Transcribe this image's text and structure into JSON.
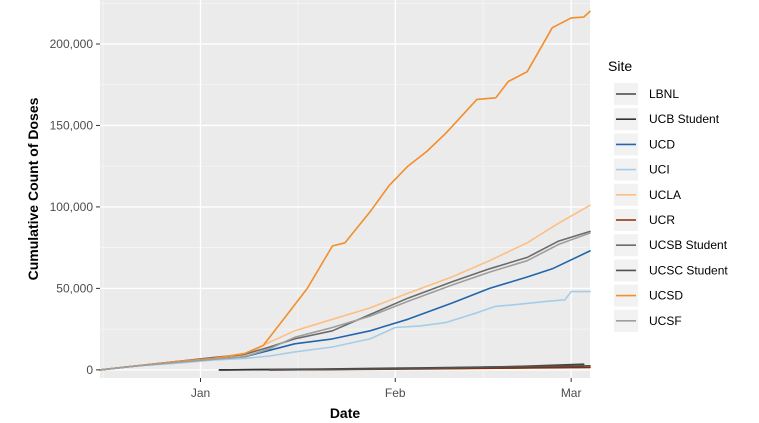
{
  "chart_data": {
    "type": "line",
    "xlabel": "Date",
    "ylabel": "Cumulative Count of Doses",
    "legend_title": "Site",
    "legend_position": "right",
    "grid": true,
    "x_range": [
      "2020-12-16",
      "2021-03-04"
    ],
    "y_range": [
      -5000,
      227000
    ],
    "x_ticks": [
      {
        "date": "2021-01-01",
        "label": "Jan"
      },
      {
        "date": "2021-02-01",
        "label": "Feb"
      },
      {
        "date": "2021-03-01",
        "label": "Mar"
      }
    ],
    "y_ticks": [
      {
        "value": 0,
        "label": "0"
      },
      {
        "value": 50000,
        "label": "50,000"
      },
      {
        "value": 100000,
        "label": "100,000"
      },
      {
        "value": 150000,
        "label": "150,000"
      },
      {
        "value": 200000,
        "label": "200,000"
      }
    ],
    "series": [
      {
        "name": "LBNL",
        "color": "#444444",
        "points": [
          [
            "2021-01-04",
            0
          ],
          [
            "2021-01-20",
            500
          ],
          [
            "2021-02-05",
            1200
          ],
          [
            "2021-02-20",
            2000
          ],
          [
            "2021-03-03",
            3500
          ]
        ]
      },
      {
        "name": "UCB Student",
        "color": "#333333",
        "points": [
          [
            "2021-01-04",
            0
          ],
          [
            "2021-01-20",
            300
          ],
          [
            "2021-02-05",
            800
          ],
          [
            "2021-02-20",
            1200
          ],
          [
            "2021-03-03",
            1800
          ]
        ]
      },
      {
        "name": "UCD",
        "color": "#2166ac",
        "points": [
          [
            "2020-12-16",
            0
          ],
          [
            "2020-12-22",
            2500
          ],
          [
            "2020-12-28",
            5000
          ],
          [
            "2021-01-03",
            7000
          ],
          [
            "2021-01-08",
            8000
          ],
          [
            "2021-01-12",
            12000
          ],
          [
            "2021-01-16",
            16000
          ],
          [
            "2021-01-22",
            19000
          ],
          [
            "2021-01-28",
            24000
          ],
          [
            "2021-02-03",
            31000
          ],
          [
            "2021-02-10",
            41000
          ],
          [
            "2021-02-16",
            50000
          ],
          [
            "2021-02-22",
            57000
          ],
          [
            "2021-02-26",
            62000
          ],
          [
            "2021-03-04",
            73000
          ]
        ]
      },
      {
        "name": "UCI",
        "color": "#a6cde8",
        "points": [
          [
            "2020-12-16",
            0
          ],
          [
            "2020-12-22",
            2500
          ],
          [
            "2020-12-28",
            4000
          ],
          [
            "2021-01-03",
            6000
          ],
          [
            "2021-01-08",
            7000
          ],
          [
            "2021-01-12",
            8500
          ],
          [
            "2021-01-16",
            11000
          ],
          [
            "2021-01-22",
            14000
          ],
          [
            "2021-01-28",
            19000
          ],
          [
            "2021-02-01",
            26000
          ],
          [
            "2021-02-05",
            27000
          ],
          [
            "2021-02-09",
            29000
          ],
          [
            "2021-02-14",
            35000
          ],
          [
            "2021-02-17",
            39000
          ],
          [
            "2021-02-20",
            40000
          ],
          [
            "2021-02-25",
            42000
          ],
          [
            "2021-02-28",
            43000
          ],
          [
            "2021-03-01",
            48000
          ],
          [
            "2021-03-04",
            48000
          ]
        ]
      },
      {
        "name": "UCLA",
        "color": "#fdbf82",
        "points": [
          [
            "2020-12-16",
            0
          ],
          [
            "2020-12-22",
            2500
          ],
          [
            "2020-12-28",
            5000
          ],
          [
            "2021-01-03",
            7500
          ],
          [
            "2021-01-08",
            9000
          ],
          [
            "2021-01-12",
            17000
          ],
          [
            "2021-01-16",
            24000
          ],
          [
            "2021-01-22",
            31000
          ],
          [
            "2021-01-28",
            38000
          ],
          [
            "2021-02-03",
            47000
          ],
          [
            "2021-02-10",
            57000
          ],
          [
            "2021-02-16",
            67000
          ],
          [
            "2021-02-22",
            78000
          ],
          [
            "2021-02-27",
            90000
          ],
          [
            "2021-03-04",
            101000
          ]
        ]
      },
      {
        "name": "UCR",
        "color": "#8c2d04",
        "points": [
          [
            "2021-01-12",
            0
          ],
          [
            "2021-02-05",
            600
          ],
          [
            "2021-03-04",
            1500
          ]
        ]
      },
      {
        "name": "UCSB Student",
        "color": "#6b6b6b",
        "points": [
          [
            "2020-12-16",
            0
          ],
          [
            "2020-12-22",
            2500
          ],
          [
            "2020-12-28",
            5000
          ],
          [
            "2021-01-03",
            7500
          ],
          [
            "2021-01-08",
            9500
          ],
          [
            "2021-01-12",
            14000
          ],
          [
            "2021-01-16",
            19000
          ],
          [
            "2021-01-22",
            24000
          ],
          [
            "2021-01-28",
            34000
          ],
          [
            "2021-02-03",
            44000
          ],
          [
            "2021-02-10",
            54000
          ],
          [
            "2021-02-16",
            62000
          ],
          [
            "2021-02-22",
            69000
          ],
          [
            "2021-02-27",
            79000
          ],
          [
            "2021-03-04",
            85000
          ]
        ]
      },
      {
        "name": "UCSC Student",
        "color": "#525252",
        "points": [
          [
            "2021-01-12",
            0
          ],
          [
            "2021-02-05",
            800
          ],
          [
            "2021-02-20",
            2000
          ],
          [
            "2021-03-04",
            2500
          ]
        ]
      },
      {
        "name": "UCSD",
        "color": "#f28e2b",
        "points": [
          [
            "2020-12-16",
            0
          ],
          [
            "2020-12-22",
            2500
          ],
          [
            "2020-12-28",
            5000
          ],
          [
            "2021-01-03",
            7000
          ],
          [
            "2021-01-08",
            10000
          ],
          [
            "2021-01-11",
            15000
          ],
          [
            "2021-01-14",
            30000
          ],
          [
            "2021-01-18",
            50000
          ],
          [
            "2021-01-22",
            76000
          ],
          [
            "2021-01-24",
            78000
          ],
          [
            "2021-01-28",
            97000
          ],
          [
            "2021-01-31",
            113000
          ],
          [
            "2021-02-03",
            125000
          ],
          [
            "2021-02-06",
            134000
          ],
          [
            "2021-02-09",
            145000
          ],
          [
            "2021-02-14",
            166000
          ],
          [
            "2021-02-17",
            167000
          ],
          [
            "2021-02-19",
            177000
          ],
          [
            "2021-02-22",
            183000
          ],
          [
            "2021-02-26",
            210000
          ],
          [
            "2021-03-01",
            216000
          ],
          [
            "2021-03-03",
            216500
          ],
          [
            "2021-03-04",
            220000
          ]
        ]
      },
      {
        "name": "UCSF",
        "color": "#9e9e9e",
        "points": [
          [
            "2020-12-16",
            0
          ],
          [
            "2020-12-22",
            2500
          ],
          [
            "2020-12-28",
            4500
          ],
          [
            "2021-01-03",
            6500
          ],
          [
            "2021-01-08",
            8000
          ],
          [
            "2021-01-12",
            13000
          ],
          [
            "2021-01-16",
            20000
          ],
          [
            "2021-01-22",
            26000
          ],
          [
            "2021-01-28",
            33000
          ],
          [
            "2021-02-03",
            42000
          ],
          [
            "2021-02-10",
            52000
          ],
          [
            "2021-02-16",
            60000
          ],
          [
            "2021-02-22",
            67000
          ],
          [
            "2021-02-27",
            77000
          ],
          [
            "2021-03-04",
            84000
          ]
        ]
      }
    ]
  }
}
